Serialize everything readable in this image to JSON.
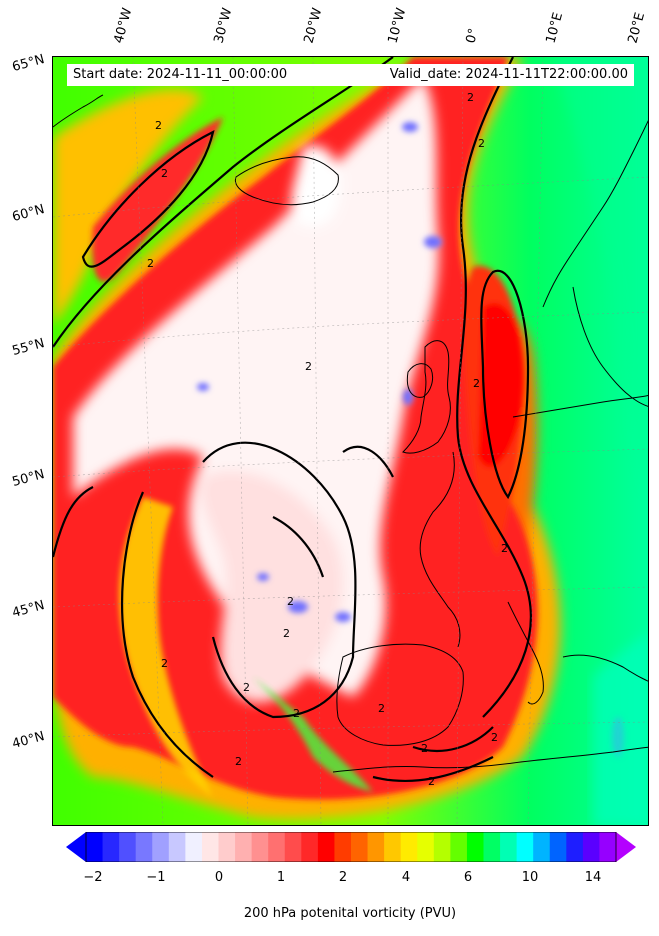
{
  "header": {
    "start_date": "Start date: 2024-11-11_00:00:00",
    "valid_date": "Valid_date: 2024-11-11T22:00:00.00"
  },
  "longitude_labels": [
    "40°W",
    "30°W",
    "20°W",
    "10°W",
    "0°",
    "10°E",
    "20°E"
  ],
  "latitude_labels": [
    "65°N",
    "60°N",
    "55°N",
    "50°N",
    "45°N",
    "40°N"
  ],
  "contour_label": "2",
  "colorbar": {
    "tick_labels": [
      "−2",
      "−1",
      "0",
      "1",
      "2",
      "4",
      "6",
      "10",
      "14"
    ],
    "label": "200 hPa potenital vorticity (PVU)",
    "colors": [
      "#0000ff",
      "#2828ff",
      "#5050ff",
      "#7878ff",
      "#a0a0ff",
      "#c8c8ff",
      "#f0f0ff",
      "#ffe6e6",
      "#ffcccc",
      "#ffb0b0",
      "#ff9090",
      "#ff7070",
      "#ff4c4c",
      "#ff2828",
      "#ff0000",
      "#ff3c00",
      "#ff6400",
      "#ff9600",
      "#ffc800",
      "#ffeb00",
      "#e6ff00",
      "#b4ff00",
      "#64ff00",
      "#00ff00",
      "#00ff64",
      "#00ffb4",
      "#00ffff",
      "#00b4ff",
      "#0064ff",
      "#1e1eff",
      "#5a00ff",
      "#9600ff"
    ],
    "extend_low_color": "#0000ff",
    "extend_high_color": "#b400ff"
  },
  "colors": {
    "background_field": "#00ff40",
    "trough_core": "#fff0f0",
    "ridge_red": "#ff2020",
    "coastline": "#000000"
  }
}
